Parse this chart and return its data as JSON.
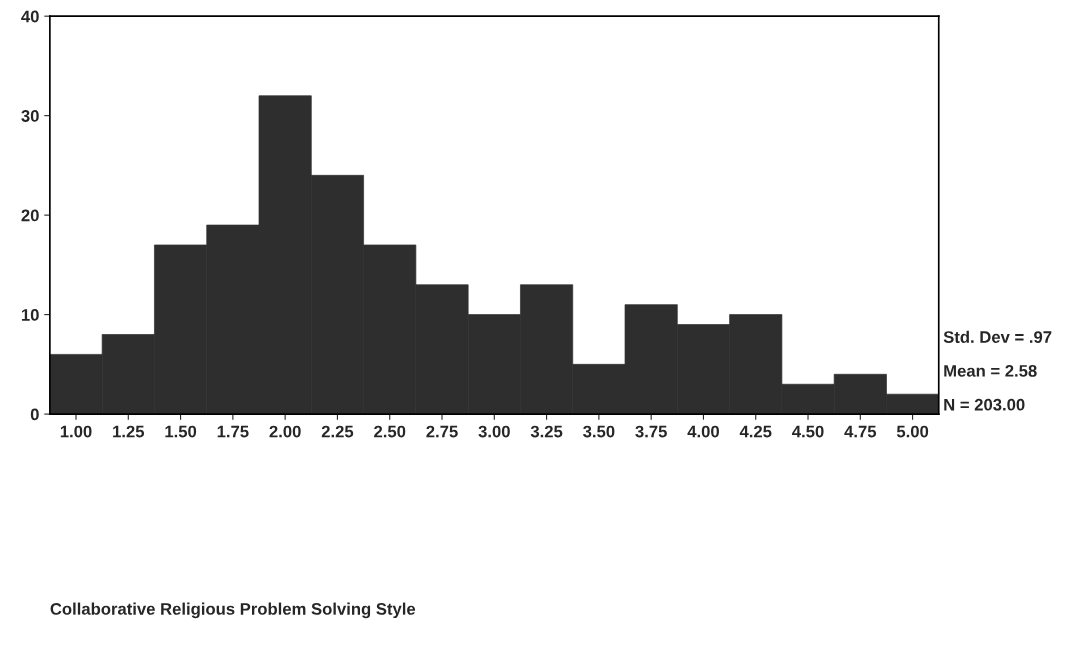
{
  "chart_data": {
    "type": "histogram",
    "bins": [
      0.875,
      1.125,
      1.375,
      1.625,
      1.875,
      2.125,
      2.375,
      2.625,
      2.875,
      3.125,
      3.375,
      3.625,
      3.875,
      4.125,
      4.375,
      4.625,
      4.875,
      5.125
    ],
    "values": [
      6,
      8,
      17,
      19,
      32,
      24,
      17,
      13,
      10,
      13,
      5,
      11,
      9,
      10,
      3,
      4,
      2
    ],
    "color": "#2e2e2e",
    "xlim": [
      0.875,
      5.125
    ],
    "xticks": [
      {
        "value": 1.0,
        "label": "1.00"
      },
      {
        "value": 1.25,
        "label": "1.25"
      },
      {
        "value": 1.5,
        "label": "1.50"
      },
      {
        "value": 1.75,
        "label": "1.75"
      },
      {
        "value": 2.0,
        "label": "2.00"
      },
      {
        "value": 2.25,
        "label": "2.25"
      },
      {
        "value": 2.5,
        "label": "2.50"
      },
      {
        "value": 2.75,
        "label": "2.75"
      },
      {
        "value": 3.0,
        "label": "3.00"
      },
      {
        "value": 3.25,
        "label": "3.25"
      },
      {
        "value": 3.5,
        "label": "3.50"
      },
      {
        "value": 3.75,
        "label": "3.75"
      },
      {
        "value": 4.0,
        "label": "4.00"
      },
      {
        "value": 4.25,
        "label": "4.25"
      },
      {
        "value": 4.5,
        "label": "4.50"
      },
      {
        "value": 4.75,
        "label": "4.75"
      },
      {
        "value": 5.0,
        "label": "5.00"
      }
    ],
    "ylim": [
      0,
      40
    ],
    "yticks": [
      0,
      10,
      20,
      30,
      40
    ],
    "grid": false,
    "annotations": [
      "Collaborative Religious Problem Solving Style",
      "Std. Dev = .97",
      "Mean = 2.58",
      "N = 203.00"
    ]
  }
}
